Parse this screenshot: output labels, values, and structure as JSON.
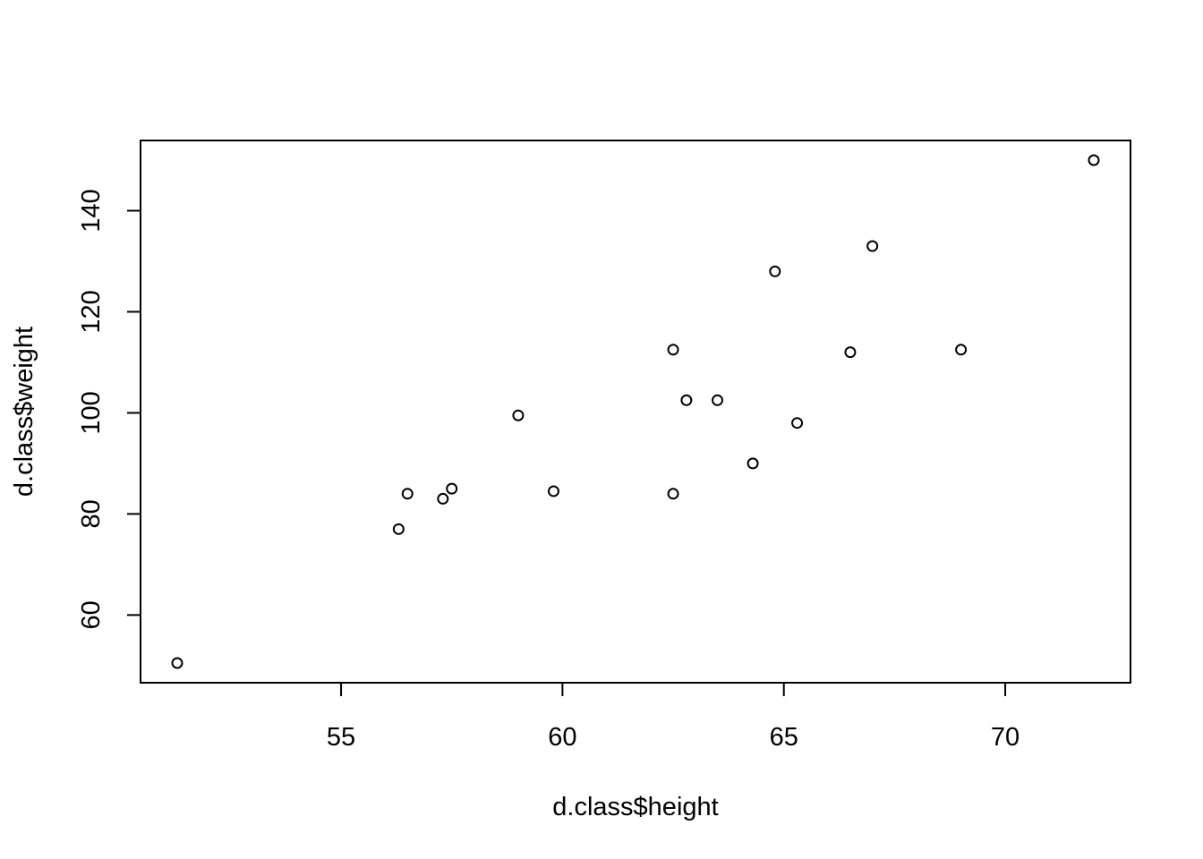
{
  "chart_data": {
    "type": "scatter",
    "title": "",
    "xlabel": "d.class$height",
    "ylabel": "d.class$weight",
    "xlim": [
      51.3,
      72.0
    ],
    "ylim": [
      50.5,
      150.0
    ],
    "x_ticks": [
      55,
      60,
      65,
      70
    ],
    "y_ticks": [
      60,
      80,
      100,
      120,
      140
    ],
    "grid": false,
    "legend": "none",
    "points": [
      {
        "x": 51.3,
        "y": 50.5
      },
      {
        "x": 56.3,
        "y": 77.0
      },
      {
        "x": 56.5,
        "y": 84.0
      },
      {
        "x": 57.3,
        "y": 83.0
      },
      {
        "x": 57.5,
        "y": 85.0
      },
      {
        "x": 59.0,
        "y": 99.5
      },
      {
        "x": 59.8,
        "y": 84.5
      },
      {
        "x": 62.5,
        "y": 112.5
      },
      {
        "x": 62.5,
        "y": 84.0
      },
      {
        "x": 62.8,
        "y": 102.5
      },
      {
        "x": 63.5,
        "y": 102.5
      },
      {
        "x": 64.3,
        "y": 90.0
      },
      {
        "x": 64.8,
        "y": 128.0
      },
      {
        "x": 65.3,
        "y": 98.0
      },
      {
        "x": 66.5,
        "y": 112.0
      },
      {
        "x": 67.0,
        "y": 133.0
      },
      {
        "x": 69.0,
        "y": 112.5
      },
      {
        "x": 72.0,
        "y": 150.0
      }
    ]
  }
}
